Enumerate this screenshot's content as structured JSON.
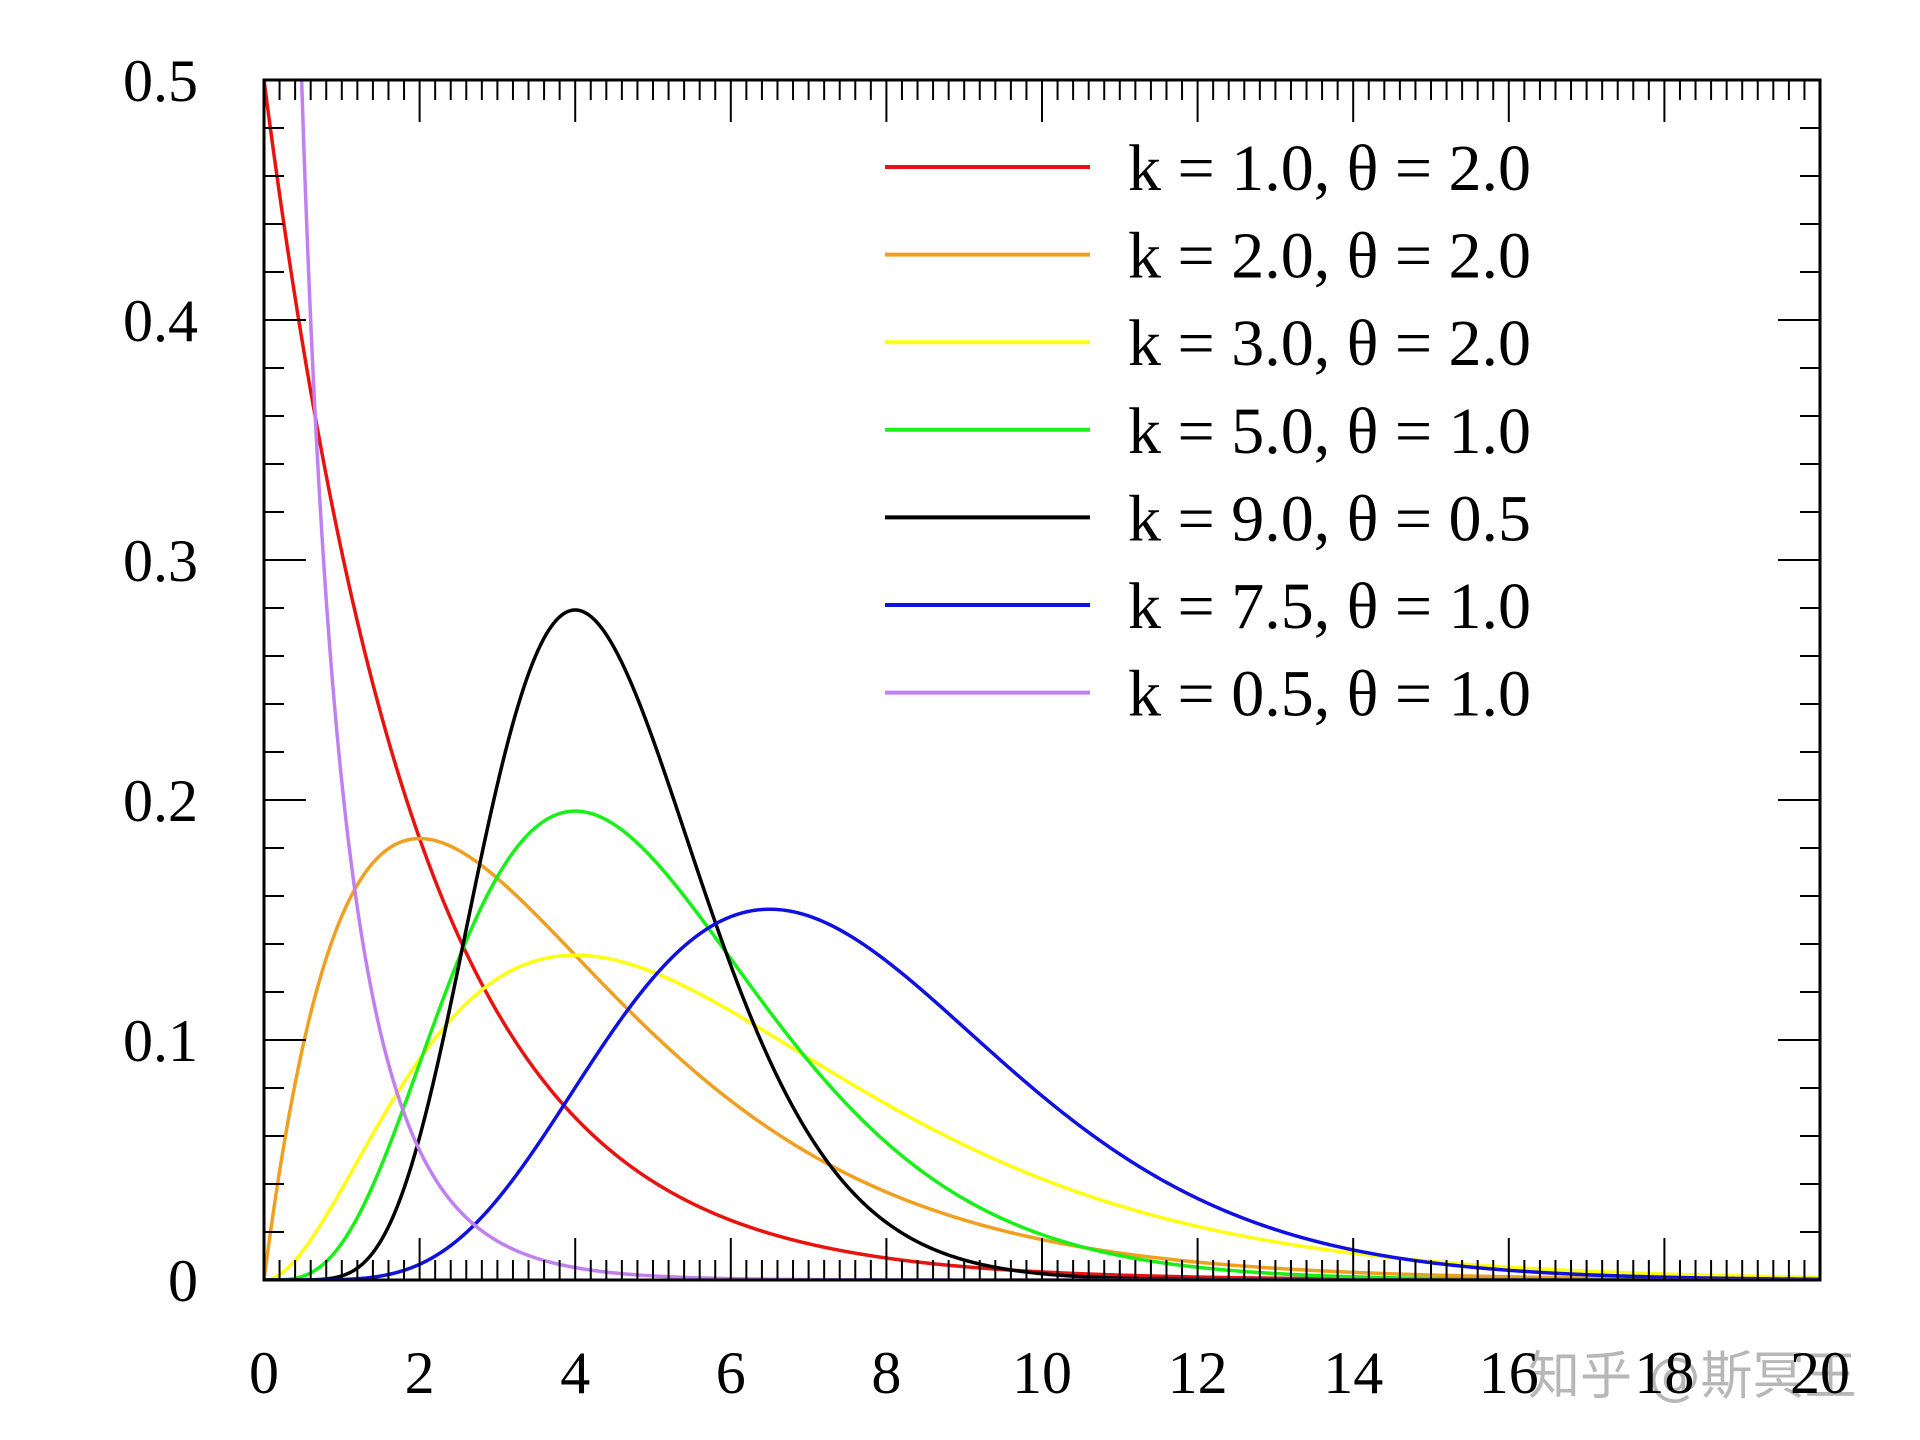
{
  "chart_data": {
    "type": "line",
    "title": "",
    "xlabel": "",
    "ylabel": "",
    "xlim": [
      0,
      20
    ],
    "ylim": [
      0,
      0.5
    ],
    "x_ticks": [
      "0",
      "2",
      "4",
      "6",
      "8",
      "10",
      "12",
      "14",
      "16",
      "18",
      "20"
    ],
    "y_ticks": [
      "0",
      "0.1",
      "0.2",
      "0.3",
      "0.4",
      "0.5"
    ],
    "grid": false,
    "legend_position": "top-right",
    "series": [
      {
        "name": "k = 1.0, θ = 2.0",
        "k": 1.0,
        "theta": 2.0,
        "color": "#e8120e"
      },
      {
        "name": "k = 2.0, θ = 2.0",
        "k": 2.0,
        "theta": 2.0,
        "color": "#f0a020"
      },
      {
        "name": "k = 3.0, θ = 2.0",
        "k": 3.0,
        "theta": 2.0,
        "color": "#ffff10"
      },
      {
        "name": "k = 5.0, θ = 1.0",
        "k": 5.0,
        "theta": 1.0,
        "color": "#18f018"
      },
      {
        "name": "k = 9.0, θ = 0.5",
        "k": 9.0,
        "theta": 0.5,
        "color": "#000000"
      },
      {
        "name": "k = 7.5, θ = 1.0",
        "k": 7.5,
        "theta": 1.0,
        "color": "#1010e0"
      },
      {
        "name": "k = 0.5, θ = 1.0",
        "k": 0.5,
        "theta": 1.0,
        "color": "#c080f0"
      }
    ]
  },
  "watermark": "知乎 @斯冥王"
}
